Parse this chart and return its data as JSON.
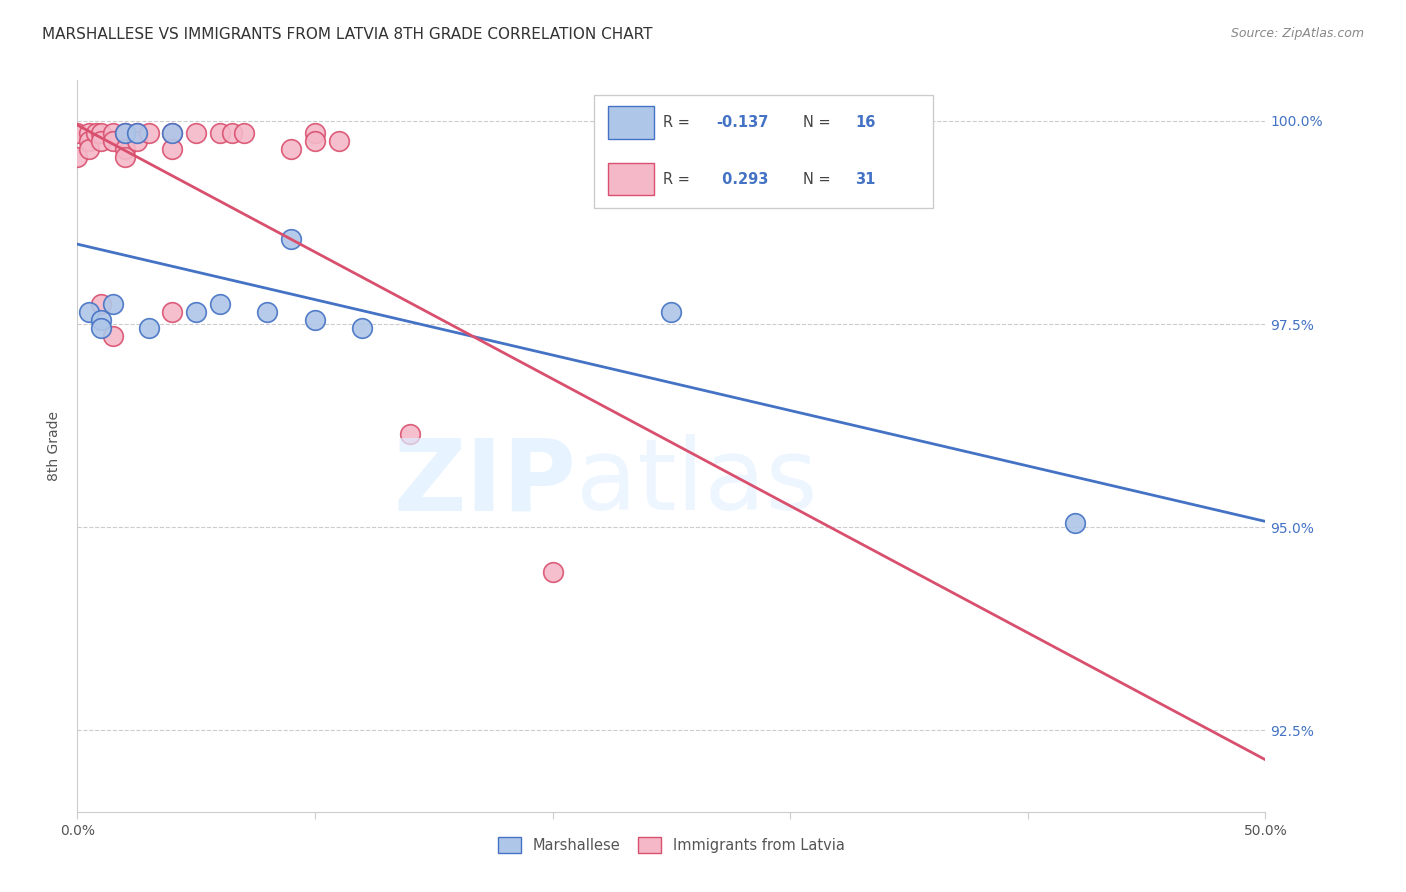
{
  "title": "MARSHALLESE VS IMMIGRANTS FROM LATVIA 8TH GRADE CORRELATION CHART",
  "source": "Source: ZipAtlas.com",
  "ylabel": "8th Grade",
  "xlim": [
    0.0,
    0.5
  ],
  "ylim": [
    0.915,
    1.005
  ],
  "xticks": [
    0.0,
    0.1,
    0.2,
    0.3,
    0.4,
    0.5
  ],
  "xtick_labels": [
    "0.0%",
    "",
    "",
    "",
    "",
    "50.0%"
  ],
  "yticks": [
    0.925,
    0.95,
    0.975,
    1.0
  ],
  "ytick_labels": [
    "92.5%",
    "95.0%",
    "97.5%",
    "100.0%"
  ],
  "legend_labels": [
    "Marshallese",
    "Immigrants from Latvia"
  ],
  "R_blue": -0.137,
  "N_blue": 16,
  "R_pink": 0.293,
  "N_pink": 31,
  "blue_color": "#aec6e8",
  "pink_color": "#f4b8c8",
  "blue_line_color": "#4472c4",
  "pink_line_color": "#d94f6e",
  "blue_scatter_x": [
    0.005,
    0.01,
    0.01,
    0.015,
    0.02,
    0.025,
    0.03,
    0.04,
    0.05,
    0.06,
    0.08,
    0.09,
    0.1,
    0.12,
    0.25,
    0.42
  ],
  "blue_scatter_y": [
    0.9765,
    0.9755,
    0.9745,
    0.9775,
    0.9985,
    0.9985,
    0.9745,
    0.9985,
    0.9765,
    0.9775,
    0.9765,
    0.9855,
    0.9755,
    0.9745,
    0.9765,
    0.9505
  ],
  "pink_scatter_x": [
    0.0,
    0.0,
    0.005,
    0.005,
    0.005,
    0.008,
    0.01,
    0.01,
    0.01,
    0.015,
    0.015,
    0.015,
    0.02,
    0.02,
    0.02,
    0.025,
    0.025,
    0.03,
    0.04,
    0.04,
    0.05,
    0.06,
    0.065,
    0.07,
    0.09,
    0.1,
    0.1,
    0.11,
    0.14,
    0.2,
    0.04
  ],
  "pink_scatter_y": [
    0.9985,
    0.9955,
    0.9985,
    0.9975,
    0.9965,
    0.9985,
    0.9985,
    0.9975,
    0.9775,
    0.9985,
    0.9975,
    0.9735,
    0.9985,
    0.9965,
    0.9955,
    0.9985,
    0.9975,
    0.9985,
    0.9985,
    0.9965,
    0.9985,
    0.9985,
    0.9985,
    0.9985,
    0.9965,
    0.9985,
    0.9975,
    0.9975,
    0.9615,
    0.9445,
    0.9765
  ]
}
